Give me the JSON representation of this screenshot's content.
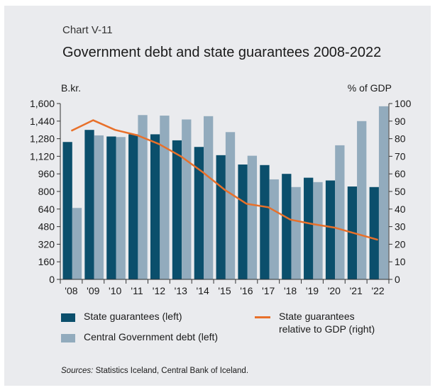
{
  "header": {
    "chart_label": "Chart V-11",
    "title": "Government debt and state guarantees 2008-2022"
  },
  "axes": {
    "left_unit": "B.kr.",
    "right_unit": "% of GDP"
  },
  "legend": {
    "state_guarantees": "State guarantees (left)",
    "central_debt": "Central Government debt (left)",
    "relative_gdp_line1": "State guarantees",
    "relative_gdp_line2": "relative to  GDP (right)"
  },
  "footer": {
    "sources_label": "Sources:",
    "sources_text": "Statistics Iceland, Central Bank of Iceland."
  },
  "colors": {
    "state_guarantees": "#0b4f6c",
    "central_debt": "#92abbd",
    "relative_gdp": "#e8702a",
    "background": "#eaebee"
  },
  "chart_data": {
    "type": "bar",
    "categories": [
      "'08",
      "'09",
      "'10",
      "'11",
      "'12",
      "'13",
      "'14",
      "'15",
      "'16",
      "'17",
      "'18",
      "'19",
      "'20",
      "'21",
      "'22"
    ],
    "series": [
      {
        "name": "State guarantees (left)",
        "type": "bar",
        "axis": "left",
        "values": [
          1250,
          1360,
          1300,
          1320,
          1320,
          1265,
          1205,
          1130,
          1045,
          1040,
          960,
          925,
          900,
          845,
          840
        ]
      },
      {
        "name": "Central Government debt (left)",
        "type": "bar",
        "axis": "left",
        "values": [
          650,
          1310,
          1295,
          1495,
          1490,
          1455,
          1485,
          1340,
          1125,
          910,
          840,
          885,
          1220,
          1440,
          1575
        ]
      },
      {
        "name": "State guarantees relative to  GDP (right)",
        "type": "line",
        "axis": "right",
        "values": [
          84.5,
          90.5,
          85,
          82,
          77,
          70,
          61,
          51,
          43,
          41,
          34,
          31.5,
          29.5,
          26,
          22.5
        ]
      }
    ],
    "y_left": {
      "label": "B.kr.",
      "min": 0,
      "max": 1600,
      "ticks": [
        "0",
        "160",
        "320",
        "480",
        "640",
        "800",
        "960",
        "1,120",
        "1,280",
        "1,440",
        "1,600"
      ]
    },
    "y_right": {
      "label": "% of GDP",
      "min": 0,
      "max": 100,
      "ticks": [
        "0",
        "10",
        "20",
        "30",
        "40",
        "50",
        "60",
        "70",
        "80",
        "90",
        "100"
      ]
    },
    "grid": false,
    "legend_position": "bottom"
  }
}
